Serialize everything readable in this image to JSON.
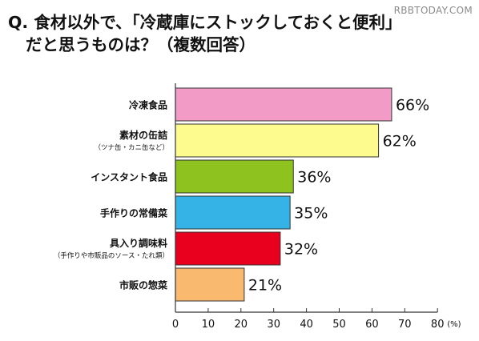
{
  "watermark": "RBBTODAY.COM",
  "question": {
    "line1": "Q. 食材以外で、「冷蔵庫にストックしておくと便利」",
    "line2": "だと思うものは？（複数回答）"
  },
  "chart_data": {
    "type": "bar",
    "orientation": "horizontal",
    "categories": [
      {
        "label": "冷凍食品",
        "sublabel": ""
      },
      {
        "label": "素材の缶詰",
        "sublabel": "（ツナ缶・カニ缶など）"
      },
      {
        "label": "インスタント食品",
        "sublabel": ""
      },
      {
        "label": "手作りの常備菜",
        "sublabel": ""
      },
      {
        "label": "具入り調味料",
        "sublabel": "（手作りや市販品のソース・たれ類）"
      },
      {
        "label": "市販の惣菜",
        "sublabel": ""
      }
    ],
    "values": [
      66,
      62,
      36,
      35,
      32,
      21
    ],
    "value_labels": [
      "66%",
      "62%",
      "36%",
      "35%",
      "32%",
      "21%"
    ],
    "colors": [
      "#f29bc6",
      "#fdfa8e",
      "#8dc21f",
      "#36b3e6",
      "#e8001e",
      "#f9b96f"
    ],
    "xlim": [
      0,
      80
    ],
    "xticks": [
      0,
      10,
      20,
      30,
      40,
      50,
      60,
      70,
      80
    ],
    "x_unit": "(%)",
    "grid": false
  }
}
